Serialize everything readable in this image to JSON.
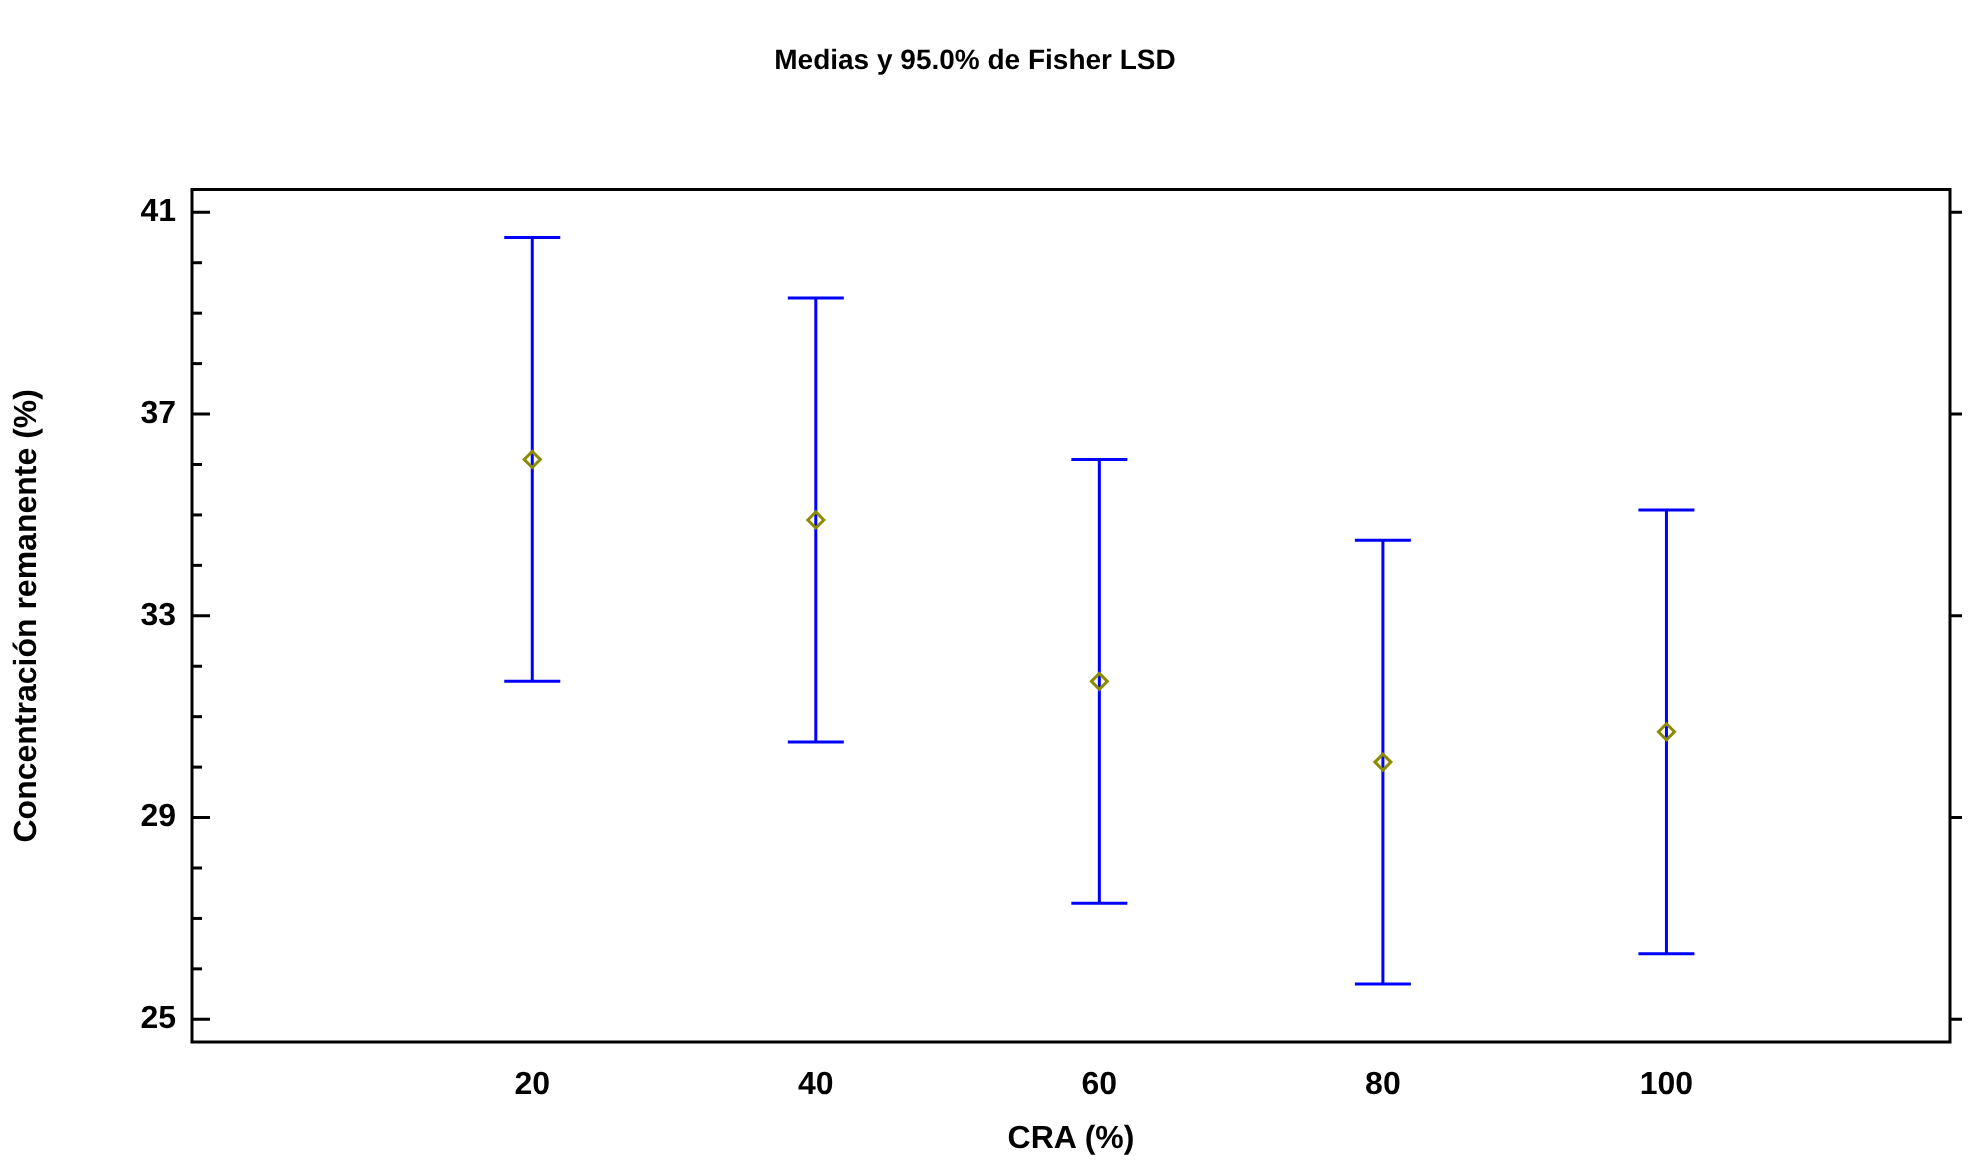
{
  "chart_data": {
    "type": "scatter",
    "title": "Medias y 95.0% de Fisher LSD",
    "xlabel": "CRA (%)",
    "ylabel": "Concentración remanente (%)",
    "x": [
      20,
      40,
      60,
      80,
      100
    ],
    "series": [
      {
        "color": "#8b8b00",
        "values": [
          36.1,
          34.9,
          31.7,
          30.1,
          30.7
        ],
        "errors": [
          4.4,
          4.4,
          4.4,
          4.4,
          4.4
        ]
      }
    ],
    "xlim": [
      -4,
      120
    ],
    "xticks": [
      20,
      40,
      60,
      80,
      100
    ],
    "ylim": [
      24.55,
      41.45
    ],
    "yticks": [
      25,
      {
        "value": 26,
        "label": null
      },
      {
        "value": 27,
        "label": null
      },
      {
        "value": 28,
        "label": null
      },
      29,
      {
        "value": 30,
        "label": null
      },
      {
        "value": 31,
        "label": null
      },
      {
        "value": 32,
        "label": null
      },
      33,
      {
        "value": 34,
        "label": null
      },
      {
        "value": 35,
        "label": null
      },
      {
        "value": 36,
        "label": null
      },
      37,
      {
        "value": 38,
        "label": null
      },
      {
        "value": 39,
        "label": null
      },
      {
        "value": 40,
        "label": null
      },
      41
    ],
    "marker": "diamond",
    "grid": false,
    "legend": false
  }
}
